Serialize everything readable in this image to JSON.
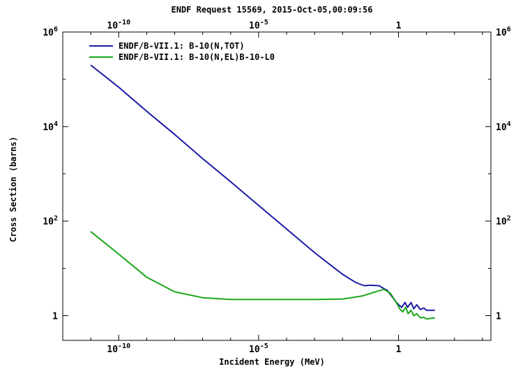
{
  "chart_data": {
    "type": "line",
    "title": "ENDF Request 15569, 2015-Oct-05,00:09:56",
    "xlabel": "Incident Energy (MeV)",
    "ylabel": "Cross Section (barns)",
    "x_scale": "log",
    "y_scale": "log",
    "xlim": [
      1e-12,
      2000
    ],
    "ylim": [
      0.3,
      1000000.0
    ],
    "grid": false,
    "legend_position": "top-left",
    "x_ticks": [
      {
        "base": "10",
        "exp": "-10",
        "value": 1e-10
      },
      {
        "base": "10",
        "exp": "-5",
        "value": 1e-05
      },
      {
        "base": "1",
        "exp": "",
        "value": 1
      }
    ],
    "y_ticks": [
      {
        "base": "10",
        "exp": "6",
        "value": 1000000.0
      },
      {
        "base": "10",
        "exp": "4",
        "value": 10000.0
      },
      {
        "base": "10",
        "exp": "2",
        "value": 100
      },
      {
        "base": "1",
        "exp": "",
        "value": 1
      }
    ],
    "series": [
      {
        "name": "ENDF/B-VII.1: B-10(N,TOT)",
        "color": "#1a1aa6",
        "points": [
          [
            1e-11,
            200000
          ],
          [
            1e-10,
            68000
          ],
          [
            1e-09,
            21000
          ],
          [
            1e-08,
            6800
          ],
          [
            1e-07,
            2100
          ],
          [
            1e-06,
            680
          ],
          [
            1e-05,
            215
          ],
          [
            0.0001,
            68
          ],
          [
            0.001,
            21.5
          ],
          [
            0.01,
            7.5
          ],
          [
            0.03,
            5.0
          ],
          [
            0.06,
            4.3
          ],
          [
            0.1,
            4.4
          ],
          [
            0.2,
            4.3
          ],
          [
            0.4,
            3.4
          ],
          [
            0.7,
            2.2
          ],
          [
            1,
            1.7
          ],
          [
            1.3,
            1.5
          ],
          [
            1.7,
            1.9
          ],
          [
            2.1,
            1.5
          ],
          [
            2.8,
            1.9
          ],
          [
            3.5,
            1.4
          ],
          [
            4.5,
            1.7
          ],
          [
            6,
            1.35
          ],
          [
            8,
            1.45
          ],
          [
            10,
            1.3
          ],
          [
            15,
            1.3
          ],
          [
            20,
            1.3
          ]
        ]
      },
      {
        "name": "ENDF/B-VII.1: B-10(N,EL)B-10-L0",
        "color": "#1aa61a",
        "points": [
          [
            1e-11,
            60
          ],
          [
            1e-10,
            20
          ],
          [
            1e-09,
            6.5
          ],
          [
            1e-08,
            3.2
          ],
          [
            1e-07,
            2.4
          ],
          [
            1e-06,
            2.2
          ],
          [
            1e-05,
            2.2
          ],
          [
            0.0001,
            2.2
          ],
          [
            0.001,
            2.2
          ],
          [
            0.01,
            2.25
          ],
          [
            0.05,
            2.6
          ],
          [
            0.15,
            3.2
          ],
          [
            0.3,
            3.6
          ],
          [
            0.5,
            3.0
          ],
          [
            0.8,
            2.0
          ],
          [
            1.1,
            1.4
          ],
          [
            1.4,
            1.2
          ],
          [
            1.8,
            1.5
          ],
          [
            2.2,
            1.1
          ],
          [
            2.8,
            1.3
          ],
          [
            3.5,
            1.0
          ],
          [
            4.5,
            1.1
          ],
          [
            6,
            0.9
          ],
          [
            8,
            0.92
          ],
          [
            10,
            0.85
          ],
          [
            15,
            0.88
          ],
          [
            20,
            0.9
          ]
        ]
      }
    ]
  }
}
